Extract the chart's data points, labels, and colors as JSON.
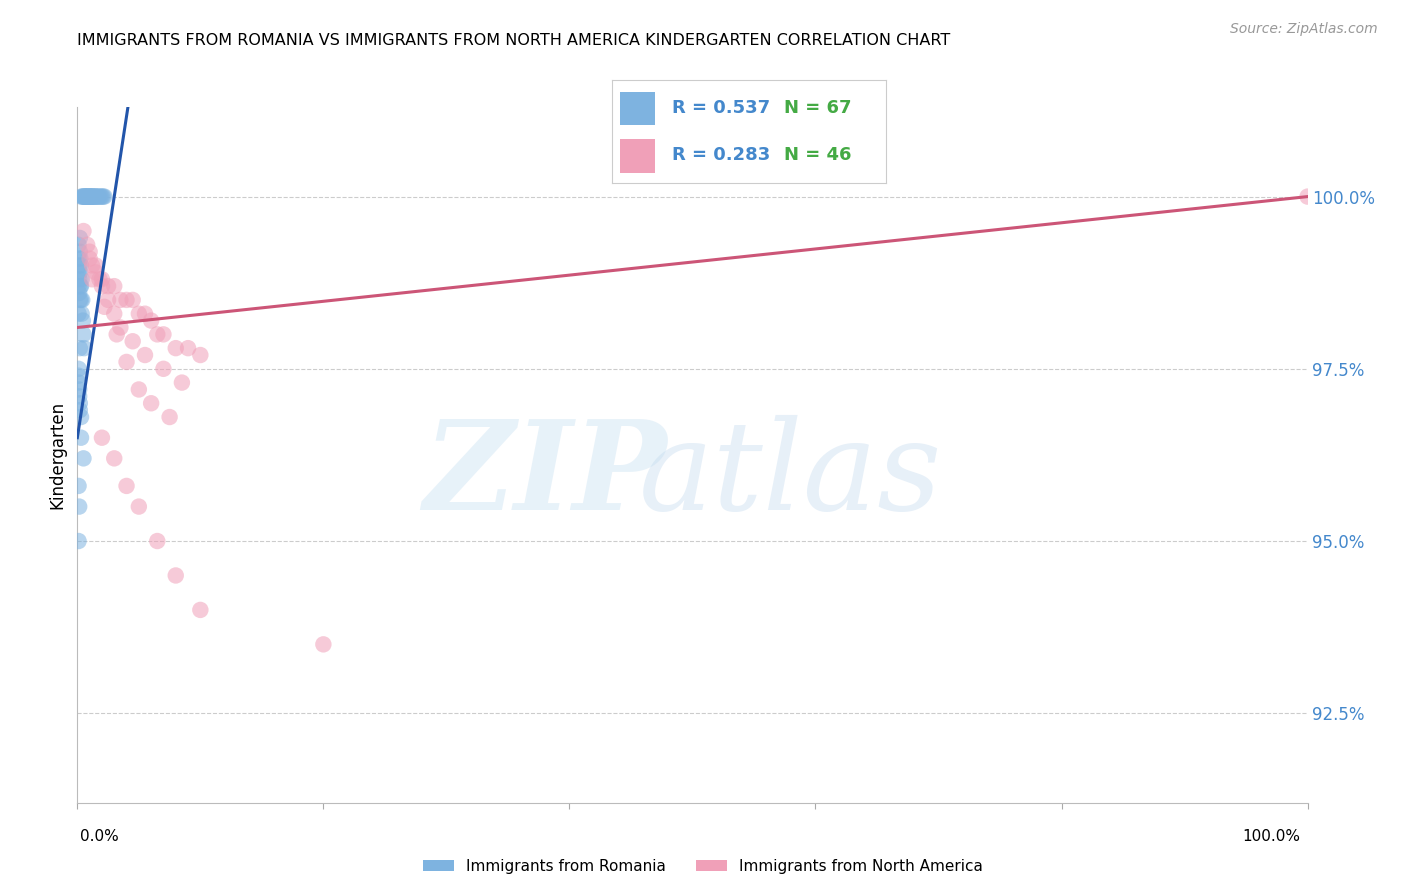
{
  "title": "IMMIGRANTS FROM ROMANIA VS IMMIGRANTS FROM NORTH AMERICA KINDERGARTEN CORRELATION CHART",
  "source": "Source: ZipAtlas.com",
  "ylabel": "Kindergarten",
  "ytick_labels": [
    "100.0%",
    "97.5%",
    "95.0%",
    "92.5%"
  ],
  "ytick_values": [
    100.0,
    97.5,
    95.0,
    92.5
  ],
  "xlim": [
    0.0,
    100.0
  ],
  "ylim": [
    91.2,
    101.3
  ],
  "legend_romania": "Immigrants from Romania",
  "legend_north_america": "Immigrants from North America",
  "R_romania": 0.537,
  "N_romania": 67,
  "R_north_america": 0.283,
  "N_north_america": 46,
  "color_romania": "#7EB3E0",
  "color_north_america": "#F0A0B8",
  "color_trendline_romania": "#2255AA",
  "color_trendline_north_america": "#CC5577",
  "romania_x": [
    0.3,
    0.4,
    0.5,
    0.5,
    0.6,
    0.6,
    0.7,
    0.7,
    0.8,
    0.8,
    0.9,
    0.9,
    1.0,
    1.0,
    1.1,
    1.1,
    1.2,
    1.2,
    1.3,
    1.3,
    1.4,
    1.5,
    1.5,
    1.6,
    1.7,
    1.8,
    1.9,
    2.0,
    2.1,
    2.2,
    0.1,
    0.1,
    0.1,
    0.1,
    0.15,
    0.15,
    0.15,
    0.2,
    0.2,
    0.2,
    0.25,
    0.25,
    0.3,
    0.3,
    0.35,
    0.35,
    0.4,
    0.45,
    0.5,
    0.55,
    0.1,
    0.1,
    0.1,
    0.15,
    0.15,
    0.2,
    0.2,
    0.3,
    0.3,
    0.5,
    0.1,
    0.15,
    0.1,
    0.2,
    0.1,
    0.3,
    0.2
  ],
  "romania_y": [
    100.0,
    100.0,
    100.0,
    100.0,
    100.0,
    100.0,
    100.0,
    100.0,
    100.0,
    100.0,
    100.0,
    100.0,
    100.0,
    100.0,
    100.0,
    100.0,
    100.0,
    100.0,
    100.0,
    100.0,
    100.0,
    100.0,
    100.0,
    100.0,
    100.0,
    100.0,
    100.0,
    100.0,
    100.0,
    100.0,
    99.3,
    99.1,
    98.9,
    98.7,
    99.0,
    98.8,
    98.6,
    99.2,
    98.9,
    98.5,
    99.1,
    98.7,
    99.0,
    98.5,
    98.8,
    98.3,
    98.5,
    98.2,
    98.0,
    97.8,
    97.5,
    97.4,
    97.3,
    97.2,
    97.1,
    97.0,
    96.9,
    96.8,
    96.5,
    96.2,
    95.8,
    95.5,
    95.0,
    97.8,
    98.3,
    98.7,
    99.4
  ],
  "north_america_x": [
    0.5,
    0.8,
    1.0,
    1.2,
    1.5,
    1.8,
    2.0,
    2.5,
    3.0,
    3.5,
    4.0,
    4.5,
    5.0,
    5.5,
    6.0,
    6.5,
    7.0,
    8.0,
    9.0,
    10.0,
    1.0,
    1.5,
    2.0,
    2.5,
    3.0,
    3.5,
    4.5,
    5.5,
    7.0,
    8.5,
    1.2,
    2.2,
    3.2,
    4.0,
    5.0,
    6.0,
    7.5,
    2.0,
    3.0,
    4.0,
    5.0,
    6.5,
    8.0,
    10.0,
    20.0,
    100.0
  ],
  "north_america_y": [
    99.5,
    99.3,
    99.2,
    99.0,
    99.0,
    98.8,
    98.8,
    98.7,
    98.7,
    98.5,
    98.5,
    98.5,
    98.3,
    98.3,
    98.2,
    98.0,
    98.0,
    97.8,
    97.8,
    97.7,
    99.1,
    98.9,
    98.7,
    98.5,
    98.3,
    98.1,
    97.9,
    97.7,
    97.5,
    97.3,
    98.8,
    98.4,
    98.0,
    97.6,
    97.2,
    97.0,
    96.8,
    96.5,
    96.2,
    95.8,
    95.5,
    95.0,
    94.5,
    94.0,
    93.5,
    100.0
  ],
  "trendline_romania_x0": 0.0,
  "trendline_romania_y0": 96.5,
  "trendline_romania_x1": 3.0,
  "trendline_romania_y1": 100.0,
  "trendline_na_x0": 0.0,
  "trendline_na_y0": 98.1,
  "trendline_na_x1": 100.0,
  "trendline_na_y1": 100.0
}
